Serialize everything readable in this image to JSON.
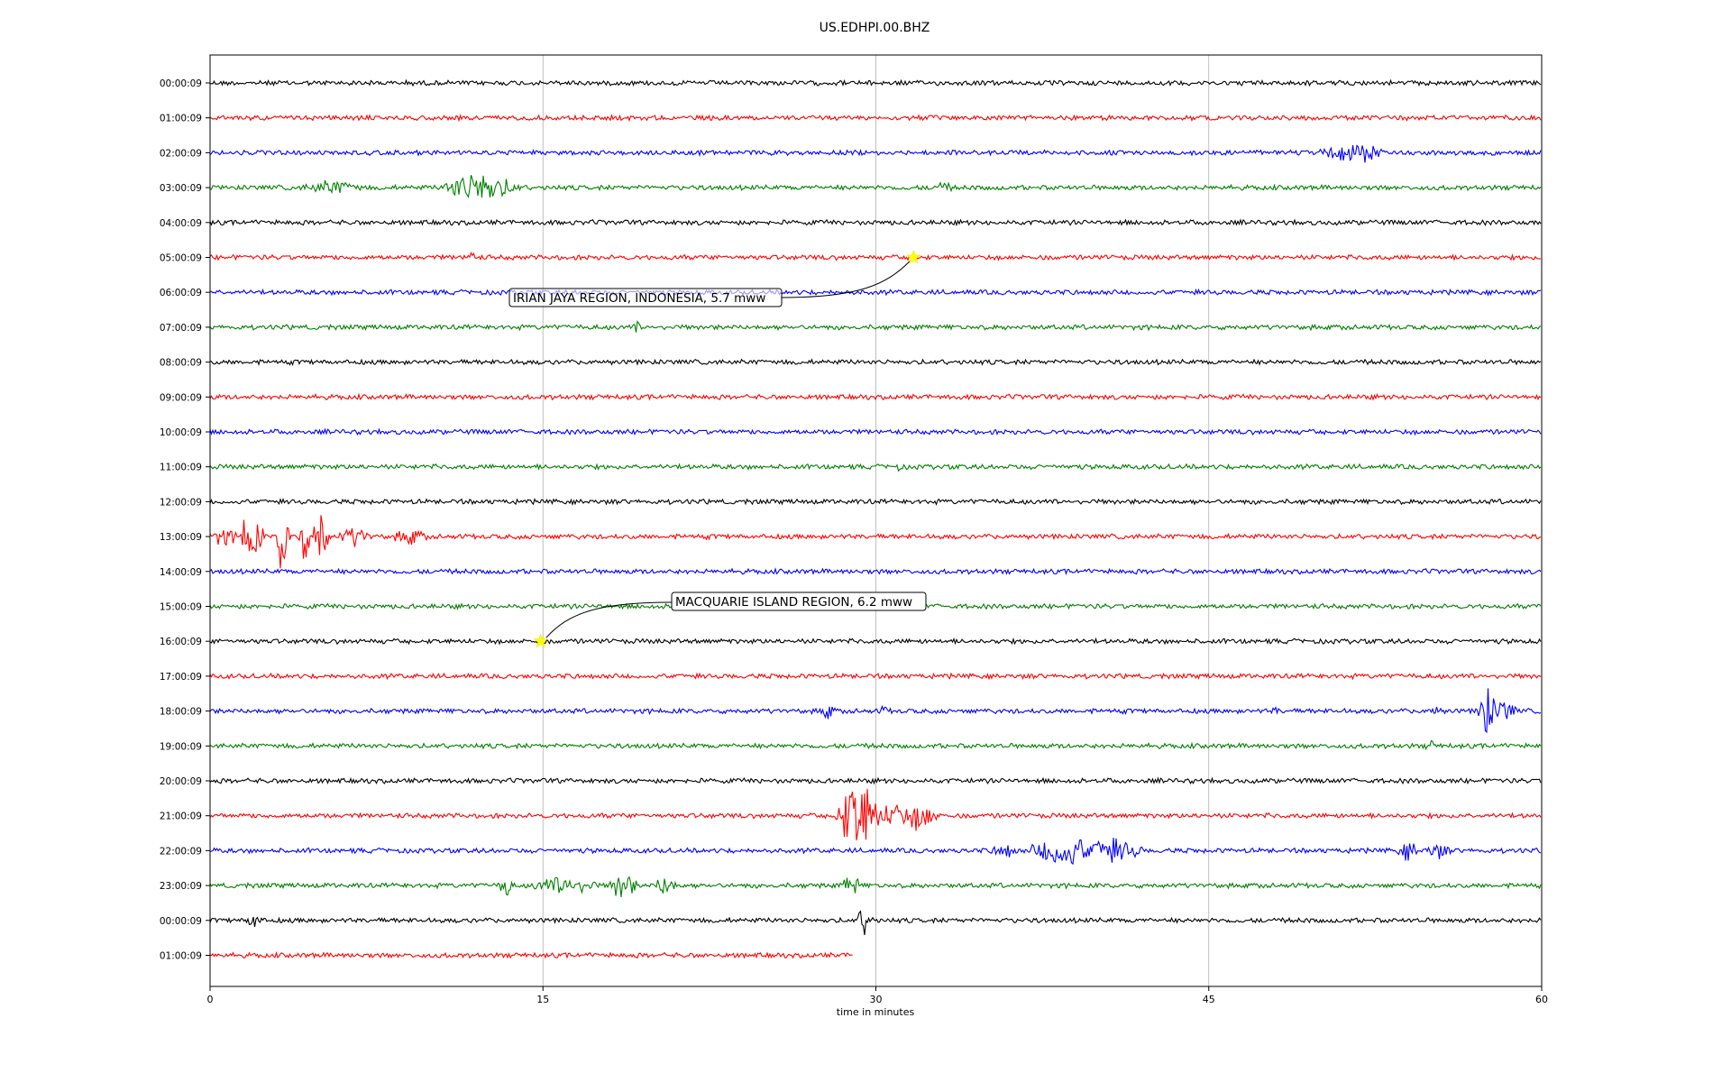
{
  "chart_data": {
    "type": "line",
    "title": "US.EDHPI.00.BHZ",
    "xlabel": "time in minutes",
    "xlim": [
      0,
      60
    ],
    "x_ticks": [
      0,
      15,
      30,
      45,
      60
    ],
    "grid": "vertical lines at x ticks",
    "trace_colors": [
      "#000000",
      "#ff0000",
      "#0000ff",
      "#008000"
    ],
    "rows": [
      {
        "label": "00:00:09",
        "bursts": [
          [
            9.2,
            0.35,
            4
          ]
        ]
      },
      {
        "label": "01:00:09",
        "bursts": []
      },
      {
        "label": "02:00:09",
        "bursts": [
          [
            50.5,
            0.6,
            10
          ],
          [
            51.2,
            0.8,
            14
          ],
          [
            52.0,
            0.8,
            16
          ]
        ]
      },
      {
        "label": "03:00:09",
        "bursts": [
          [
            5.5,
            1.5,
            10
          ],
          [
            11.5,
            1.0,
            20
          ],
          [
            12.2,
            0.8,
            28
          ],
          [
            13.0,
            1.0,
            14
          ],
          [
            33.0,
            0.6,
            8
          ]
        ]
      },
      {
        "label": "04:00:09",
        "bursts": []
      },
      {
        "label": "05:00:09",
        "bursts": [
          [
            11.7,
            0.25,
            12
          ]
        ]
      },
      {
        "label": "06:00:09",
        "bursts": [
          [
            20.0,
            0.3,
            5
          ]
        ]
      },
      {
        "label": "07:00:09",
        "bursts": [
          [
            19.2,
            0.15,
            12
          ]
        ]
      },
      {
        "label": "08:00:09",
        "bursts": []
      },
      {
        "label": "09:00:09",
        "bursts": []
      },
      {
        "label": "10:00:09",
        "bursts": []
      },
      {
        "label": "11:00:09",
        "bursts": [
          [
            31.0,
            0.3,
            6
          ]
        ]
      },
      {
        "label": "12:00:09",
        "bursts": []
      },
      {
        "label": "13:00:09",
        "bursts": [
          [
            0.6,
            0.8,
            12
          ],
          [
            1.8,
            0.6,
            34
          ],
          [
            3.3,
            0.3,
            60
          ],
          [
            4.2,
            0.3,
            36
          ],
          [
            5.0,
            0.4,
            44
          ],
          [
            6.5,
            0.8,
            14
          ],
          [
            9.0,
            0.8,
            12
          ]
        ]
      },
      {
        "label": "14:00:09",
        "bursts": []
      },
      {
        "label": "15:00:09",
        "bursts": []
      },
      {
        "label": "16:00:09",
        "bursts": []
      },
      {
        "label": "17:00:09",
        "bursts": []
      },
      {
        "label": "18:00:09",
        "bursts": [
          [
            27.8,
            0.4,
            12
          ],
          [
            30.4,
            0.3,
            8
          ],
          [
            48.0,
            0.2,
            8
          ],
          [
            55.2,
            0.3,
            10
          ],
          [
            57.5,
            0.4,
            40
          ],
          [
            58.3,
            0.6,
            16
          ]
        ]
      },
      {
        "label": "19:00:09",
        "bursts": [
          [
            55.0,
            0.3,
            8
          ]
        ]
      },
      {
        "label": "20:00:09",
        "bursts": []
      },
      {
        "label": "21:00:09",
        "bursts": [
          [
            29.2,
            1.0,
            55
          ],
          [
            30.8,
            0.8,
            20
          ],
          [
            32.0,
            0.8,
            22
          ]
        ]
      },
      {
        "label": "22:00:09",
        "bursts": [
          [
            35.8,
            0.6,
            12
          ],
          [
            38.5,
            1.5,
            24
          ],
          [
            40.5,
            1.5,
            18
          ],
          [
            54.0,
            0.5,
            14
          ],
          [
            55.3,
            0.6,
            12
          ]
        ]
      },
      {
        "label": "23:00:09",
        "bursts": [
          [
            13.3,
            0.3,
            20
          ],
          [
            16.0,
            1.5,
            14
          ],
          [
            18.6,
            0.6,
            22
          ],
          [
            20.5,
            0.5,
            16
          ],
          [
            28.9,
            0.4,
            20
          ]
        ]
      },
      {
        "label": "00:00:09",
        "bursts": [
          [
            2.0,
            0.4,
            14
          ],
          [
            29.5,
            0.4,
            20
          ]
        ]
      },
      {
        "label": "01:00:09",
        "bursts": [],
        "end": 29.0
      }
    ],
    "annotations": [
      {
        "text": "IRIAN JAYA REGION, INDONESIA, 5.7 mww",
        "row": 5,
        "x": 31.7
      },
      {
        "text": "MACQUARIE ISLAND REGION, 6.2 mww",
        "row": 16,
        "x": 14.9
      }
    ]
  }
}
